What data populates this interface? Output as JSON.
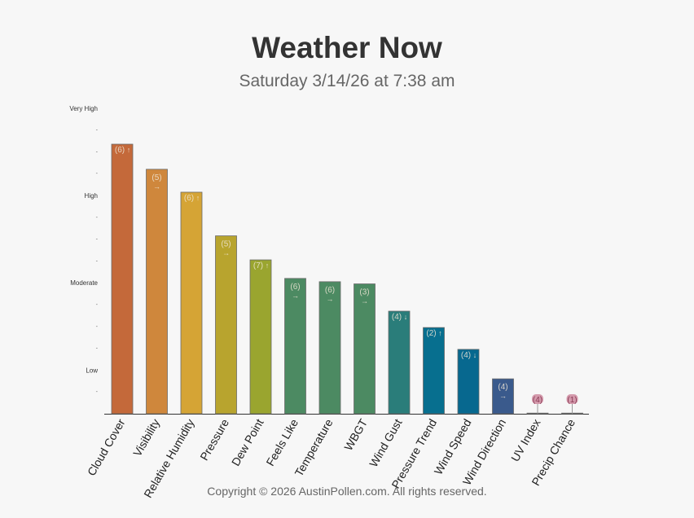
{
  "title": "Weather Now",
  "subtitle": "Saturday 3/14/26 at 7:38 am",
  "footer": "Copyright © 2026 AustinPollen.com.  All rights reserved.",
  "chart_data": {
    "type": "bar",
    "title": "Weather Now",
    "subtitle": "Saturday 3/14/26 at 7:38 am",
    "ylim": [
      0,
      12
    ],
    "y_tick_labels": [
      {
        "value": 2,
        "label": "Low"
      },
      {
        "value": 6,
        "label": "Moderate"
      },
      {
        "value": 10,
        "label": "High"
      },
      {
        "value": 14,
        "label": "Very High"
      }
    ],
    "y_minor_ticks": [
      1,
      3,
      4,
      5,
      7,
      8,
      9,
      11,
      12,
      13
    ],
    "categories": [
      "Cloud Cover",
      "Visibility",
      "Relative Humidity",
      "Pressure",
      "Dew Point",
      "Feels Like",
      "Temperature",
      "WBGT",
      "Wind Gust",
      "Pressure Trend",
      "Wind Speed",
      "Wind Direction",
      "UV Index",
      "Precip Chance"
    ],
    "values": [
      12.35,
      11.2,
      10.15,
      8.15,
      7.05,
      6.2,
      6.05,
      5.95,
      4.7,
      3.95,
      2.95,
      1.6,
      0.0,
      0.0
    ],
    "data_labels": [
      {
        "num": "(6)",
        "arrow": "↑",
        "stacked": false
      },
      {
        "num": "(5)",
        "arrow": "→",
        "stacked": true
      },
      {
        "num": "(6)",
        "arrow": "↑",
        "stacked": false
      },
      {
        "num": "(5)",
        "arrow": "→",
        "stacked": true
      },
      {
        "num": "(7)",
        "arrow": "↑",
        "stacked": false
      },
      {
        "num": "(6)",
        "arrow": "→",
        "stacked": true
      },
      {
        "num": "(6)",
        "arrow": "→",
        "stacked": true
      },
      {
        "num": "(3)",
        "arrow": "→",
        "stacked": true
      },
      {
        "num": "(4)",
        "arrow": "↓",
        "stacked": false
      },
      {
        "num": "(2)",
        "arrow": "↑",
        "stacked": false
      },
      {
        "num": "(4)",
        "arrow": "↓",
        "stacked": false
      },
      {
        "num": "(4)",
        "arrow": "→",
        "stacked": true
      },
      {
        "num": "(4)",
        "arrow": "",
        "stacked": false
      },
      {
        "num": "(1)",
        "arrow": "",
        "stacked": false
      }
    ],
    "colors": [
      "#c4693a",
      "#cf873c",
      "#d5a435",
      "#b8a42e",
      "#9aa52f",
      "#4c8a62",
      "#4c8a62",
      "#4c8a62",
      "#2a7d7a",
      "#076f8f",
      "#07688f",
      "#3a5a8c",
      "#c98fa2",
      "#c98fa2"
    ],
    "grid": false,
    "legend": "none"
  }
}
